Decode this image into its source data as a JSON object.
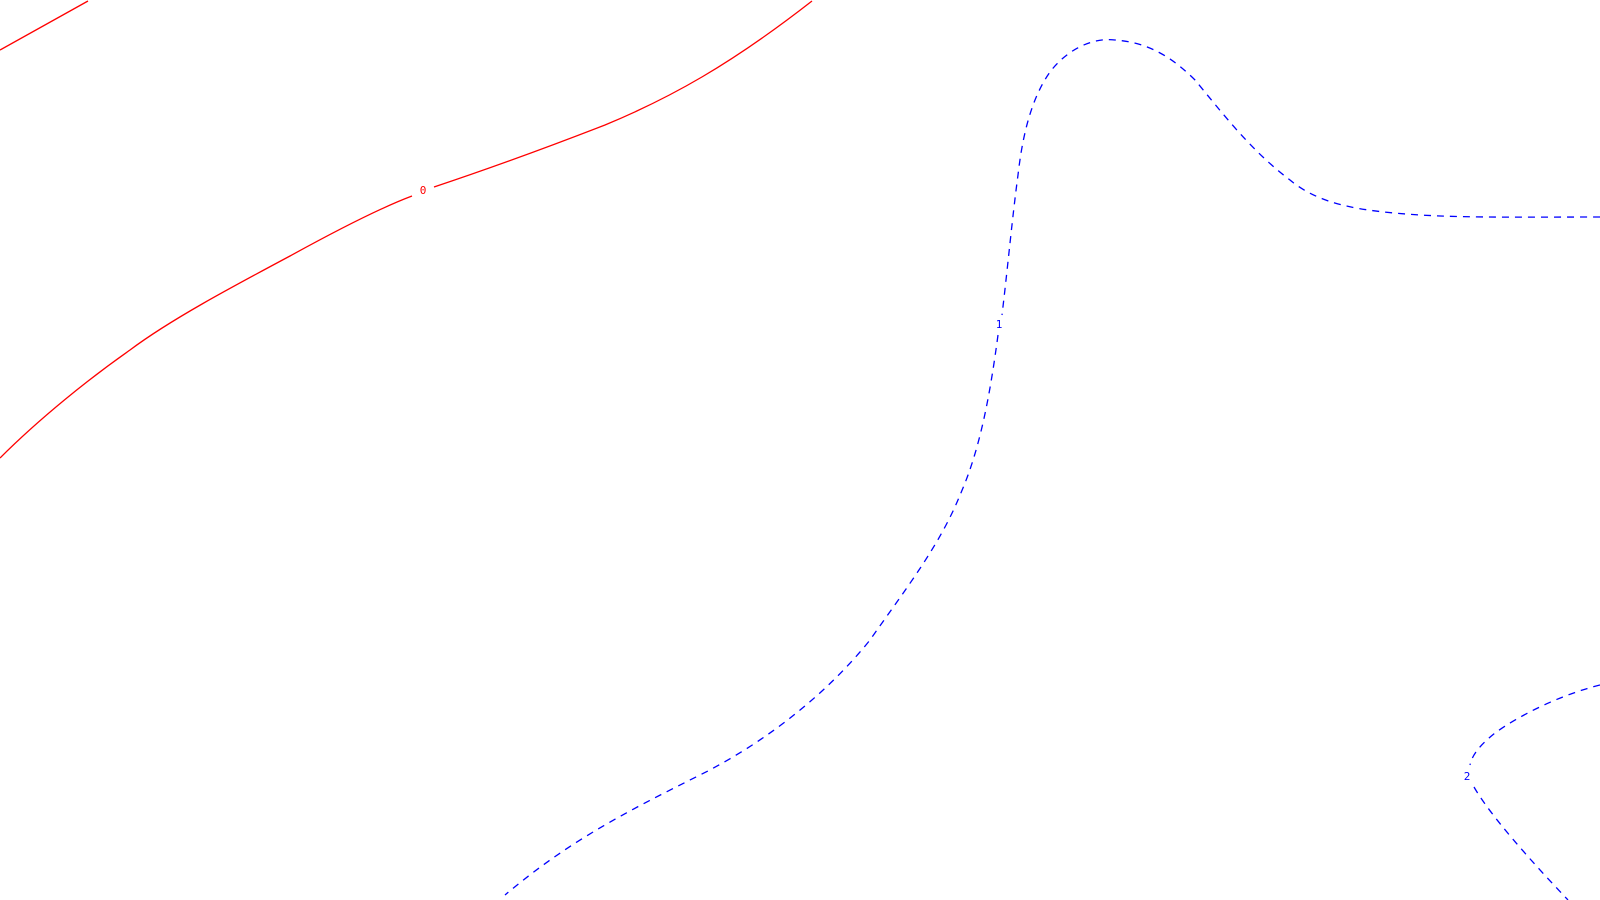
{
  "chart_data": {
    "type": "contour",
    "title": "",
    "xlabel": "",
    "ylabel": "",
    "grid": false,
    "legend": "none",
    "levels": [
      {
        "value": 0,
        "label": "0",
        "color": "#ff0000",
        "style": "solid"
      },
      {
        "value": 1,
        "label": "1",
        "color": "#0000ff",
        "style": "dashed"
      },
      {
        "value": 2,
        "label": "2",
        "color": "#0000ff",
        "style": "dashed"
      }
    ]
  }
}
